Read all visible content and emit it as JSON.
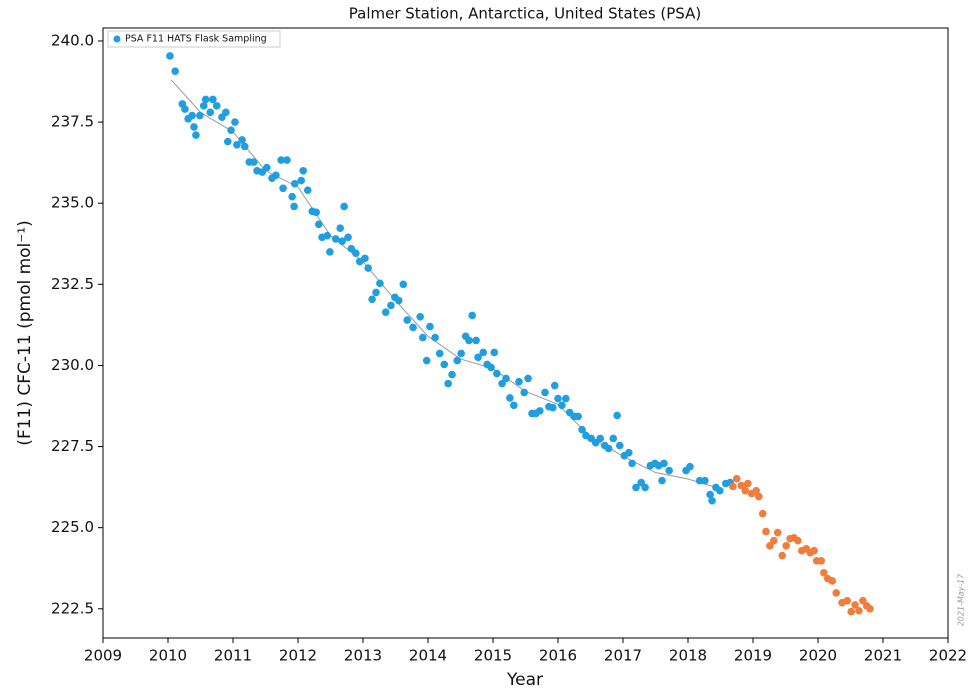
{
  "chart_data": {
    "type": "scatter",
    "title": "Palmer Station, Antarctica, United States (PSA)",
    "x_label": "Year",
    "y_label": "(F11) CFC-11 (pmol mol⁻¹)",
    "annotation": "2021-May-17",
    "legend": "upper left",
    "grid": true,
    "xlim": [
      2009,
      2022
    ],
    "ylim": [
      221.6,
      240.4
    ],
    "xticks": [
      2009,
      2010,
      2011,
      2012,
      2013,
      2014,
      2015,
      2016,
      2017,
      2018,
      2019,
      2020,
      2021,
      2022
    ],
    "yticks": [
      222.5,
      {
        "value": 225,
        "label": "225.0"
      },
      227.5,
      {
        "value": 230,
        "label": "230.0"
      },
      232.5,
      {
        "value": 235,
        "label": "235.0"
      },
      237.5,
      {
        "value": 240,
        "label": "240.0"
      }
    ],
    "series": [
      {
        "name": "PSA F11 HATS Flask Sampling",
        "color": "#1f9ee0",
        "x": [
          2010.03,
          2010.11,
          2010.22,
          2010.26,
          2010.31,
          2010.37,
          2010.4,
          2010.43,
          2010.49,
          2010.55,
          2010.58,
          2010.65,
          2010.69,
          2010.75,
          2010.83,
          2010.89,
          2010.92,
          2010.97,
          2011.03,
          2011.06,
          2011.14,
          2011.18,
          2011.25,
          2011.32,
          2011.37,
          2011.45,
          2011.52,
          2011.6,
          2011.66,
          2011.74,
          2011.83,
          2011.77,
          2011.91,
          2011.95,
          2012.05,
          2011.94,
          2012.08,
          2012.15,
          2012.22,
          2012.28,
          2012.32,
          2012.37,
          2012.45,
          2012.49,
          2012.58,
          2012.65,
          2012.71,
          2012.68,
          2012.77,
          2012.82,
          2012.89,
          2012.95,
          2013.03,
          2013.08,
          2013.14,
          2013.2,
          2013.26,
          2013.35,
          2013.43,
          2013.49,
          2013.55,
          2013.62,
          2013.68,
          2013.77,
          2013.88,
          2013.92,
          2013.98,
          2014.03,
          2014.11,
          2014.18,
          2014.25,
          2014.31,
          2014.37,
          2014.45,
          2014.51,
          2014.58,
          2014.63,
          2014.68,
          2014.74,
          2014.77,
          2014.85,
          2014.91,
          2014.97,
          2015.02,
          2015.06,
          2015.14,
          2015.2,
          2015.26,
          2015.32,
          2015.4,
          2015.48,
          2015.54,
          2015.6,
          2015.66,
          2015.72,
          2015.8,
          2015.86,
          2015.92,
          2015.95,
          2016.0,
          2016.06,
          2016.12,
          2016.18,
          2016.25,
          2016.31,
          2016.37,
          2016.43,
          2016.51,
          2016.58,
          2016.65,
          2016.72,
          2016.78,
          2016.85,
          2016.91,
          2016.95,
          2017.02,
          2017.09,
          2017.14,
          2017.2,
          2017.28,
          2017.34,
          2017.42,
          2017.49,
          2017.55,
          2017.63,
          2017.6,
          2017.71,
          2017.97,
          2018.03,
          2018.18,
          2018.26,
          2018.34,
          2018.37,
          2018.43,
          2018.49,
          2018.58,
          2018.65
        ],
        "values": [
          239.54,
          239.07,
          238.06,
          237.9,
          237.6,
          237.7,
          237.35,
          237.1,
          237.7,
          238.0,
          238.2,
          237.8,
          238.2,
          238.0,
          237.65,
          237.8,
          236.9,
          237.25,
          237.5,
          236.8,
          236.95,
          236.75,
          236.27,
          236.27,
          236.0,
          235.96,
          236.1,
          235.77,
          235.86,
          236.33,
          236.33,
          235.46,
          235.2,
          235.6,
          235.7,
          234.9,
          236.0,
          235.4,
          234.75,
          234.72,
          234.35,
          233.95,
          234.0,
          233.5,
          233.9,
          234.23,
          234.9,
          233.83,
          233.95,
          233.6,
          233.46,
          233.2,
          233.3,
          233.0,
          232.04,
          232.25,
          232.53,
          231.64,
          231.85,
          232.1,
          232.0,
          232.5,
          231.4,
          231.17,
          231.5,
          230.86,
          230.15,
          231.2,
          230.86,
          230.37,
          230.03,
          229.44,
          229.72,
          230.15,
          230.37,
          230.9,
          230.77,
          231.54,
          230.77,
          230.25,
          230.4,
          230.03,
          229.94,
          230.4,
          229.75,
          229.44,
          229.6,
          229.0,
          228.77,
          229.5,
          229.17,
          229.6,
          228.52,
          228.52,
          228.6,
          229.17,
          228.73,
          228.7,
          229.38,
          228.98,
          228.77,
          228.98,
          228.55,
          228.43,
          228.43,
          228.02,
          227.84,
          227.75,
          227.62,
          227.75,
          227.53,
          227.44,
          227.75,
          228.46,
          227.53,
          227.22,
          227.31,
          226.98,
          226.24,
          226.39,
          226.24,
          226.91,
          226.98,
          226.91,
          226.98,
          226.45,
          226.76,
          226.76,
          226.88,
          226.45,
          226.45,
          226.02,
          225.83,
          226.24,
          226.14,
          226.36,
          226.39
        ]
      },
      {
        "color": "#f07d3c",
        "x": [
          2018.69,
          2018.75,
          2018.82,
          2018.88,
          2018.92,
          2018.98,
          2019.05,
          2019.09,
          2019.15,
          2019.2,
          2019.26,
          2019.32,
          2019.38,
          2019.45,
          2019.51,
          2019.57,
          2019.63,
          2019.69,
          2019.75,
          2019.82,
          2019.88,
          2019.94,
          2019.98,
          2020.05,
          2020.09,
          2020.15,
          2020.22,
          2020.28,
          2020.37,
          2020.45,
          2020.51,
          2020.57,
          2020.63,
          2020.69,
          2020.75,
          2020.8
        ],
        "values": [
          226.27,
          226.51,
          226.3,
          226.14,
          226.36,
          226.05,
          226.14,
          225.96,
          225.43,
          224.88,
          224.44,
          224.6,
          224.85,
          224.14,
          224.44,
          224.66,
          224.69,
          224.6,
          224.29,
          224.35,
          224.23,
          224.29,
          223.98,
          223.98,
          223.61,
          223.43,
          223.36,
          222.99,
          222.69,
          222.75,
          222.41,
          222.62,
          222.44,
          222.75,
          222.59,
          222.5
        ]
      },
      {
        "color": "#999999",
        "line": true,
        "x": [
          2010.05,
          2010.5,
          2011.0,
          2011.5,
          2012.0,
          2012.5,
          2013.0,
          2013.5,
          2014.0,
          2014.5,
          2015.0,
          2015.5,
          2016.0,
          2016.5,
          2017.0,
          2017.5,
          2018.0,
          2018.5
        ],
        "values": [
          238.8,
          237.8,
          237.2,
          236.0,
          235.5,
          234.0,
          233.2,
          232.0,
          230.9,
          230.2,
          229.9,
          229.2,
          228.8,
          227.8,
          227.2,
          226.7,
          226.5,
          226.2
        ]
      }
    ]
  }
}
